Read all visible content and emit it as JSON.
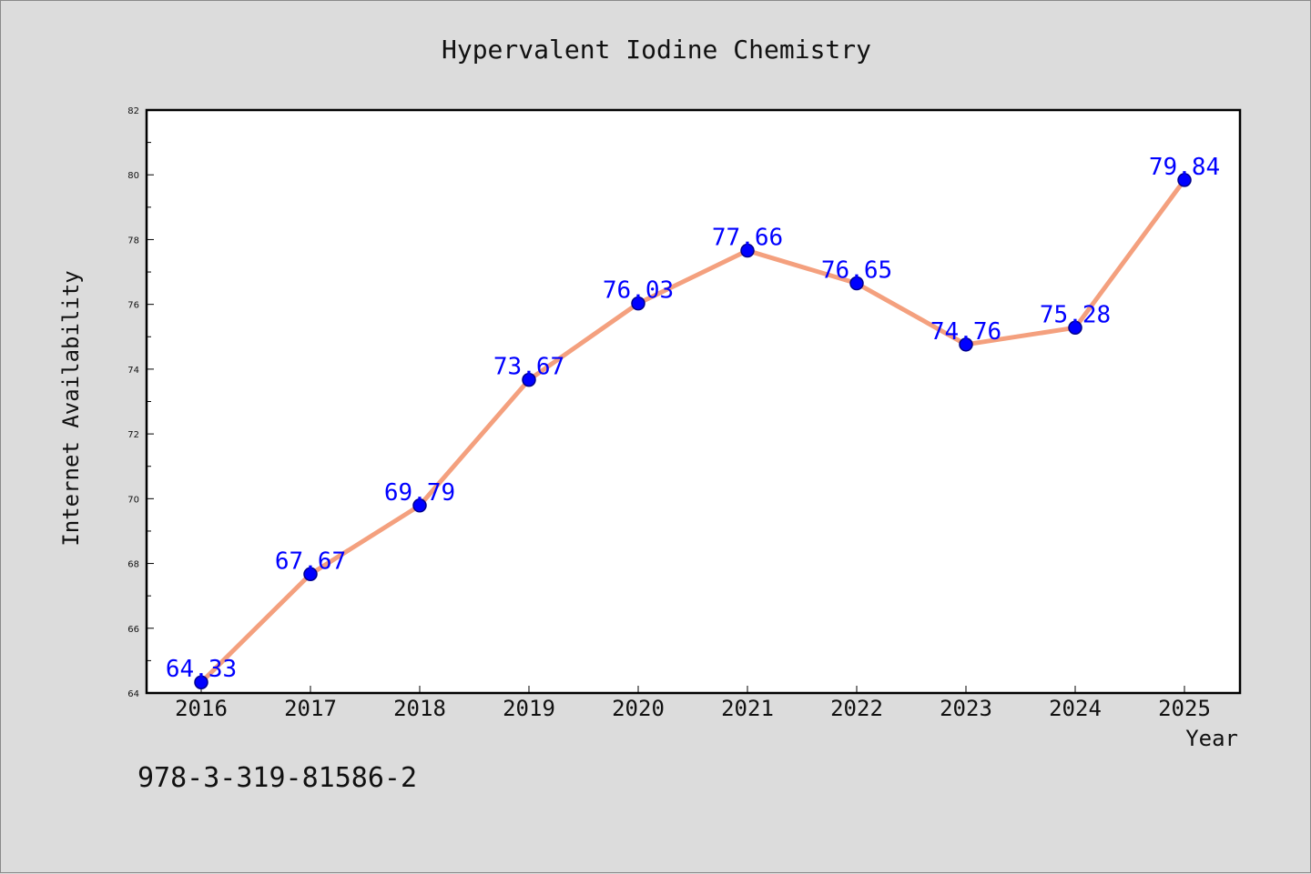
{
  "colors": {
    "line": "#f4a07e",
    "marker": "#0000ff",
    "marker_edge": "#00008b",
    "data_label": "#0000ff"
  },
  "footnote": "978-3-319-81586-2",
  "chart_data": {
    "type": "line",
    "title": "Hypervalent Iodine Chemistry",
    "xlabel": "Year",
    "ylabel": "Internet Availability",
    "x": [
      "2016",
      "2017",
      "2018",
      "2019",
      "2020",
      "2021",
      "2022",
      "2023",
      "2024",
      "2025"
    ],
    "values": [
      64.33,
      67.67,
      69.79,
      73.67,
      76.03,
      77.66,
      76.65,
      74.76,
      75.28,
      79.84
    ],
    "data_labels": [
      "64.33",
      "67.67",
      "69.79",
      "73.67",
      "76.03",
      "77.66",
      "76.65",
      "74.76",
      "75.28",
      "79.84"
    ],
    "ylim": [
      64,
      82
    ],
    "yticks": [
      64,
      66,
      68,
      70,
      72,
      74,
      76,
      78,
      80,
      82
    ],
    "grid": false,
    "legend": "none",
    "markers": "circle"
  }
}
